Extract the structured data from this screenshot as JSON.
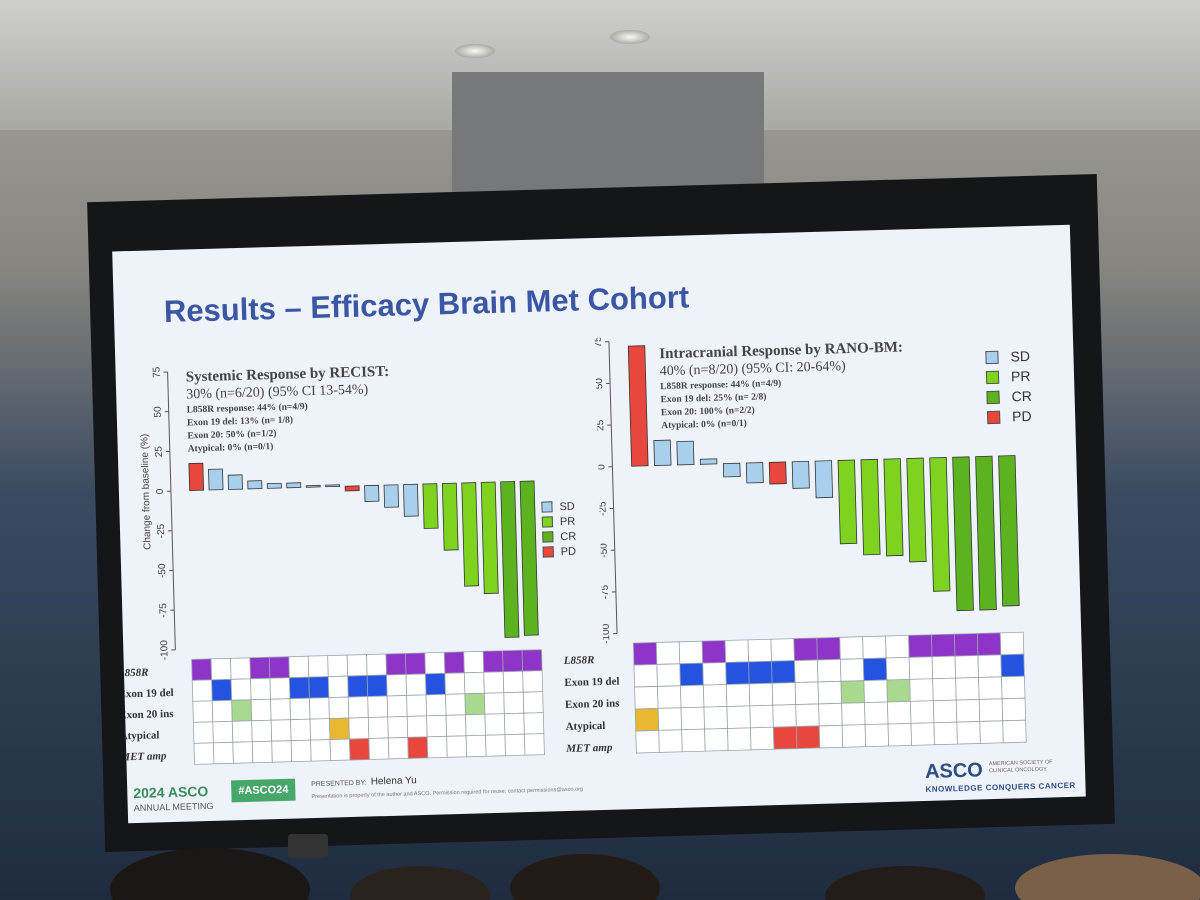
{
  "slide": {
    "title": "Results – Efficacy Brain Met Cohort"
  },
  "colors": {
    "SD": "#a8d0ec",
    "PR": "#7ed321",
    "CR": "#5cb31f",
    "PD": "#e8473e",
    "L858R": "#8e34c8",
    "Exon 19 del": "#2453e0",
    "Exon 20 ins": "#a9d98f",
    "Atypical": "#e9b730",
    "MET amp": "#e8473e",
    "title": "#3b56a3"
  },
  "footer": {
    "asco_year": "2024 ASCO",
    "asco_annual": "ANNUAL MEETING",
    "hashtag": "#ASCO24",
    "presented_by": "PRESENTED BY:",
    "presenter": "Helena Yu",
    "disclaimer": "Presentation is property of the author and ASCO. Permission required for reuse; contact permissions@asco.org",
    "logo": "ASCO",
    "society": "AMERICAN SOCIETY OF CLINICAL ONCOLOGY",
    "tagline": "KNOWLEDGE CONQUERS CANCER"
  },
  "chart_data": [
    {
      "type": "bar",
      "title": "Systemic Response by RECIST:",
      "subtitle": "30% (n=6/20) (95% CI 13-54%)",
      "notes": [
        "L858R response: 44% (n=4/9)",
        "Exon 19 del: 13% (n= 1/8)",
        "Exon 20: 50% (n=1/2)",
        "Atypical: 0% (n=0/1)"
      ],
      "ylabel": "Change from baseline (%)",
      "ylim": [
        -100,
        75
      ],
      "yticks": [
        "75",
        "50",
        "25",
        "0",
        "-25",
        "-50",
        "-75",
        "-100"
      ],
      "ytick_values": [
        75,
        50,
        25,
        0,
        -25,
        -50,
        -75,
        -100
      ],
      "legend": [
        "SD",
        "PR",
        "CR",
        "PD"
      ],
      "legend_position": "right",
      "values": [
        17,
        13,
        9,
        5,
        3,
        3,
        1,
        1,
        -3,
        -10,
        -14,
        -20,
        -28,
        -42,
        -65,
        -70,
        -98,
        -97
      ],
      "response": [
        "PD",
        "SD",
        "SD",
        "SD",
        "SD",
        "SD",
        "SD",
        "SD",
        "PD",
        "SD",
        "SD",
        "SD",
        "PR",
        "PR",
        "PR",
        "PR",
        "CR",
        "CR"
      ],
      "mutation_rows": [
        "L858R",
        "Exon 19 del",
        "Exon 20 ins",
        "Atypical",
        "MET amp"
      ],
      "mutation_grid": [
        [
          1,
          0,
          0,
          1,
          1,
          0,
          0,
          0,
          0,
          0,
          1,
          1,
          0,
          1,
          0,
          1,
          1,
          1
        ],
        [
          0,
          1,
          0,
          0,
          0,
          1,
          1,
          0,
          1,
          1,
          0,
          0,
          1,
          0,
          0,
          0,
          0,
          0
        ],
        [
          0,
          0,
          1,
          0,
          0,
          0,
          0,
          0,
          0,
          0,
          0,
          0,
          0,
          0,
          1,
          0,
          0,
          0
        ],
        [
          0,
          0,
          0,
          0,
          0,
          0,
          0,
          1,
          0,
          0,
          0,
          0,
          0,
          0,
          0,
          0,
          0,
          0
        ],
        [
          0,
          0,
          0,
          0,
          0,
          0,
          0,
          0,
          1,
          0,
          0,
          1,
          0,
          0,
          0,
          0,
          0,
          0
        ]
      ]
    },
    {
      "type": "bar",
      "title": "Intracranial Response by RANO-BM:",
      "subtitle": "40% (n=8/20) (95% CI: 20-64%)",
      "notes": [
        "L858R response: 44% (n=4/9)",
        "Exon 19 del: 25% (n= 2/8)",
        "Exon 20: 100% (n=2/2)",
        "Atypical: 0% (n=0/1)"
      ],
      "ylabel": "Change from baseline (%)",
      "ylim": [
        -100,
        75
      ],
      "yticks": [
        "75",
        "50",
        "25",
        "0",
        "-25",
        "-50",
        "-75",
        "-100"
      ],
      "ytick_values": [
        75,
        50,
        25,
        0,
        -25,
        -50,
        -75,
        -100
      ],
      "legend": [
        "SD",
        "PR",
        "CR",
        "PD"
      ],
      "legend_position": "top-right",
      "values": [
        72,
        15,
        14,
        3,
        -8,
        -12,
        -13,
        -16,
        -22,
        -50,
        -57,
        -58,
        -62,
        -80,
        -92,
        -92,
        -90
      ],
      "response": [
        "PD",
        "SD",
        "SD",
        "SD",
        "SD",
        "SD",
        "PD",
        "SD",
        "SD",
        "PR",
        "PR",
        "PR",
        "PR",
        "PR",
        "CR",
        "CR",
        "CR"
      ],
      "mutation_rows": [
        "L858R",
        "Exon 19 del",
        "Exon 20 ins",
        "Atypical",
        "MET amp"
      ],
      "mutation_grid": [
        [
          1,
          0,
          0,
          1,
          0,
          0,
          0,
          1,
          1,
          0,
          0,
          0,
          1,
          1,
          1,
          1,
          0
        ],
        [
          0,
          0,
          1,
          0,
          1,
          1,
          1,
          0,
          0,
          0,
          1,
          0,
          0,
          0,
          0,
          0,
          1
        ],
        [
          0,
          0,
          0,
          0,
          0,
          0,
          0,
          0,
          0,
          1,
          0,
          1,
          0,
          0,
          0,
          0,
          0
        ],
        [
          1,
          0,
          0,
          0,
          0,
          0,
          0,
          0,
          0,
          0,
          0,
          0,
          0,
          0,
          0,
          0,
          0
        ],
        [
          0,
          0,
          0,
          0,
          0,
          0,
          1,
          1,
          0,
          0,
          0,
          0,
          0,
          0,
          0,
          0,
          0
        ]
      ]
    }
  ]
}
